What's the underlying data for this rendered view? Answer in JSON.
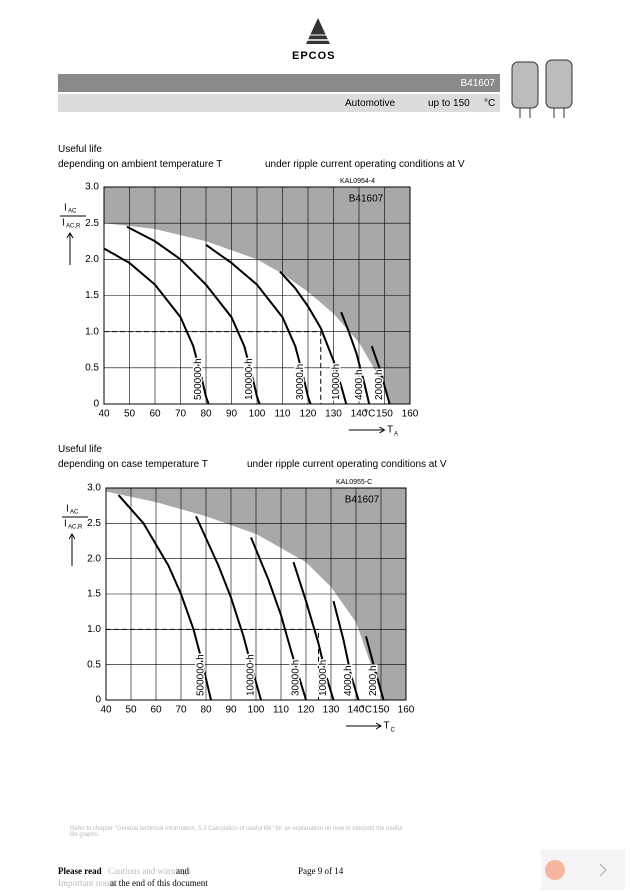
{
  "header": {
    "brand": "EPCOS",
    "part": "B41607",
    "segment": "Automotive",
    "temp": "up to 150",
    "temp_unit": "°C"
  },
  "sections": [
    {
      "title": "Useful life",
      "text": "depending on ambient temperature T",
      "text2": "under ripple current operating conditions at V"
    },
    {
      "title": "Useful life",
      "text": "depending on case temperature T",
      "text2": "under ripple current operating conditions at V"
    }
  ],
  "chart_data": [
    {
      "type": "line",
      "annotation": "KAL0954-4",
      "label": "B41607",
      "x_label": "T",
      "x_label_sub": "A",
      "x_unit": "°C",
      "y_label": {
        "num": "I",
        "num_sub": "AC",
        "den": "I",
        "den_sub": "AC,R"
      },
      "xlim": [
        40,
        160
      ],
      "ylim": [
        0,
        3
      ],
      "xticks": [
        40,
        50,
        60,
        70,
        80,
        90,
        100,
        110,
        120,
        130,
        140,
        150,
        160
      ],
      "yticks": [
        0,
        0.5,
        {
          "value": 1,
          "label": "1.0"
        },
        1.5,
        {
          "value": 2,
          "label": "2.0"
        },
        2.5,
        {
          "value": 3,
          "label": "3.0"
        }
      ],
      "limit_area": {
        "x": [
          40,
          60,
          80,
          100,
          110,
          120,
          130,
          140,
          145,
          150,
          152
        ],
        "values": [
          2.5,
          2.42,
          2.25,
          2.0,
          1.8,
          1.55,
          1.25,
          0.85,
          0.55,
          0.2,
          0
        ]
      },
      "series": [
        {
          "name": "500000 h",
          "color": "#000000",
          "x": [
            40,
            50,
            60,
            70,
            75,
            78,
            80,
            81
          ],
          "values": [
            2.15,
            1.95,
            1.65,
            1.2,
            0.8,
            0.4,
            0.1,
            0
          ]
        },
        {
          "name": "100000 h",
          "color": "#000000",
          "x": [
            49,
            60,
            70,
            80,
            90,
            95,
            98,
            100,
            101
          ],
          "values": [
            2.45,
            2.25,
            2.0,
            1.65,
            1.2,
            0.8,
            0.4,
            0.1,
            0
          ]
        },
        {
          "name": "30000 h",
          "color": "#000000",
          "x": [
            80,
            90,
            100,
            110,
            115,
            118,
            120,
            121
          ],
          "values": [
            2.2,
            1.95,
            1.65,
            1.2,
            0.8,
            0.4,
            0.1,
            0
          ]
        },
        {
          "name": "10000 h",
          "color": "#000000",
          "x": [
            109,
            115,
            120,
            125,
            130,
            133,
            135
          ],
          "values": [
            1.83,
            1.6,
            1.35,
            1.05,
            0.6,
            0.25,
            0
          ]
        },
        {
          "name": "4000 h",
          "color": "#000000",
          "x": [
            133,
            136,
            139,
            142,
            144
          ],
          "values": [
            1.27,
            1.0,
            0.7,
            0.3,
            0
          ]
        },
        {
          "name": "2000 h",
          "color": "#000000",
          "x": [
            145,
            148,
            150,
            152
          ],
          "values": [
            0.8,
            0.5,
            0.25,
            0
          ]
        }
      ]
    },
    {
      "type": "line",
      "annotation": "KAL0955-C",
      "label": "B41607",
      "x_label": "T",
      "x_label_sub": "C",
      "x_unit": "°C",
      "y_label": {
        "num": "I",
        "num_sub": "AC",
        "den": "I",
        "den_sub": "AC,R"
      },
      "xlim": [
        40,
        160
      ],
      "ylim": [
        0,
        3
      ],
      "xticks": [
        40,
        50,
        60,
        70,
        80,
        90,
        100,
        110,
        120,
        130,
        140,
        150,
        160
      ],
      "yticks": [
        0,
        0.5,
        {
          "value": 1,
          "label": "1.0"
        },
        1.5,
        {
          "value": 2,
          "label": "2.0"
        },
        2.5,
        {
          "value": 3,
          "label": "3.0"
        }
      ],
      "limit_area": {
        "x": [
          40,
          60,
          80,
          100,
          120,
          130,
          140,
          145,
          150,
          151
        ],
        "values": [
          2.95,
          2.8,
          2.6,
          2.35,
          1.95,
          1.6,
          1.1,
          0.6,
          0.1,
          0
        ]
      },
      "series": [
        {
          "name": "500000 h",
          "color": "#000000",
          "x": [
            45,
            55,
            65,
            70,
            75,
            78,
            80,
            82
          ],
          "values": [
            2.9,
            2.5,
            1.9,
            1.5,
            1.0,
            0.6,
            0.3,
            0
          ]
        },
        {
          "name": "100000 h",
          "color": "#000000",
          "x": [
            76,
            85,
            90,
            95,
            98,
            100,
            102
          ],
          "values": [
            2.6,
            1.9,
            1.45,
            0.9,
            0.5,
            0.25,
            0
          ]
        },
        {
          "name": "30000 h",
          "color": "#000000",
          "x": [
            98,
            105,
            110,
            114,
            117,
            120
          ],
          "values": [
            2.3,
            1.7,
            1.2,
            0.7,
            0.35,
            0
          ]
        },
        {
          "name": "10000 h",
          "color": "#000000",
          "x": [
            115,
            120,
            125,
            128,
            131
          ],
          "values": [
            1.95,
            1.4,
            0.8,
            0.35,
            0
          ]
        },
        {
          "name": "4000 h",
          "color": "#000000",
          "x": [
            131,
            135,
            138,
            141
          ],
          "values": [
            1.4,
            0.85,
            0.35,
            0
          ]
        },
        {
          "name": "2000 h",
          "color": "#000000",
          "x": [
            144,
            147,
            149,
            151
          ],
          "values": [
            0.9,
            0.5,
            0.25,
            0
          ]
        }
      ]
    }
  ],
  "footnote": "Refer to chapter \"General technical information, 5.3 Calculation of useful life\" for an explanation on how to interpret the useful life graphs.",
  "footer": {
    "please": "Please read",
    "cautions": "Cautions and warnings",
    "and": "and",
    "notes": "Important notes",
    "end": "at the end of this document",
    "page": "Page 9 of 14"
  }
}
